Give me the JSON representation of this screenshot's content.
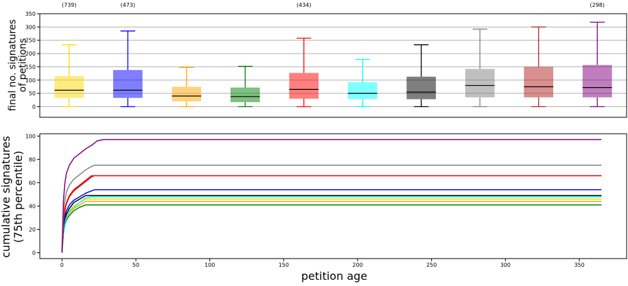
{
  "chart_data": [
    {
      "type": "box",
      "ylabel": "final no. signatures\nof petitions",
      "ylim": [
        -40,
        350
      ],
      "yticks": [
        0,
        50,
        100,
        150,
        200,
        250,
        300,
        350
      ],
      "ytick_labels": [
        "0",
        "50",
        "100",
        "150",
        "200",
        "250",
        "300",
        "350"
      ],
      "grid": "horizontal",
      "count_labels": [
        "(739)",
        "(473)",
        "(434)",
        "(298)"
      ],
      "count_label_positions": [
        1,
        2,
        5,
        10
      ],
      "boxes": [
        {
          "color": "#FFD700",
          "median_color": "#000000",
          "whisker_low": 0,
          "q1": 33,
          "median": 62,
          "q3": 115,
          "whisker_high": 233
        },
        {
          "color": "#0000FF",
          "median_color": "#000000",
          "whisker_low": 0,
          "q1": 33,
          "median": 62,
          "q3": 138,
          "whisker_high": 285
        },
        {
          "color": "#FFA500",
          "median_color": "#000000",
          "whisker_low": 0,
          "q1": 20,
          "median": 40,
          "q3": 75,
          "whisker_high": 148
        },
        {
          "color": "#008000",
          "median_color": "#000000",
          "whisker_low": 0,
          "q1": 17,
          "median": 38,
          "q3": 72,
          "whisker_high": 152
        },
        {
          "color": "#FF0000",
          "median_color": "#000000",
          "whisker_low": 0,
          "q1": 30,
          "median": 65,
          "q3": 127,
          "whisker_high": 258
        },
        {
          "color": "#00FFFF",
          "median_color": "#000000",
          "whisker_low": 0,
          "q1": 28,
          "median": 50,
          "q3": 92,
          "whisker_high": 178
        },
        {
          "color": "#000000",
          "median_color": "#000000",
          "whisker_low": 0,
          "q1": 28,
          "median": 55,
          "q3": 113,
          "whisker_high": 233
        },
        {
          "color": "#808080",
          "median_color": "#000000",
          "whisker_low": 0,
          "q1": 35,
          "median": 80,
          "q3": 142,
          "whisker_high": 292
        },
        {
          "color": "#B22222",
          "median_color": "#000000",
          "whisker_low": 0,
          "q1": 35,
          "median": 75,
          "q3": 150,
          "whisker_high": 300
        },
        {
          "color": "#800080",
          "median_color": "#000000",
          "whisker_low": 0,
          "q1": 35,
          "median": 72,
          "q3": 157,
          "whisker_high": 318
        }
      ]
    },
    {
      "type": "line",
      "xlabel": "petition age",
      "ylabel": "cumulative signatures\n(75th percentile)",
      "xlim": [
        -15,
        382
      ],
      "ylim": [
        -5,
        102
      ],
      "xticks": [
        0,
        50,
        100,
        150,
        200,
        250,
        300,
        350
      ],
      "xtick_labels": [
        "0",
        "50",
        "100",
        "150",
        "200",
        "250",
        "300",
        "350"
      ],
      "yticks": [
        0,
        20,
        40,
        60,
        80,
        100
      ],
      "ytick_labels": [
        "0",
        "20",
        "40",
        "60",
        "80",
        "100"
      ],
      "series": [
        {
          "color": "#008000",
          "x": [
            0,
            1,
            2,
            3,
            5,
            8,
            12,
            16,
            20,
            365
          ],
          "y": [
            0,
            17,
            24,
            28,
            32,
            36,
            39,
            41,
            41,
            41
          ]
        },
        {
          "color": "#FFA500",
          "x": [
            0,
            1,
            2,
            3,
            5,
            8,
            12,
            16,
            20,
            365
          ],
          "y": [
            0,
            19,
            26,
            30,
            34,
            38,
            41,
            44,
            44,
            44
          ]
        },
        {
          "color": "#FFD700",
          "x": [
            0,
            1,
            2,
            3,
            5,
            8,
            12,
            16,
            20,
            365
          ],
          "y": [
            0,
            20,
            27,
            31,
            36,
            40,
            43,
            46,
            46,
            46
          ]
        },
        {
          "color": "#00FFFF",
          "x": [
            0,
            1,
            2,
            3,
            5,
            8,
            12,
            16,
            20,
            365
          ],
          "y": [
            0,
            18,
            25,
            30,
            35,
            39,
            43,
            47,
            48,
            48
          ]
        },
        {
          "color": "#000000",
          "x": [
            0,
            1,
            2,
            3,
            5,
            8,
            12,
            16,
            20,
            365
          ],
          "y": [
            0,
            22,
            29,
            33,
            38,
            43,
            46,
            49,
            49,
            49
          ]
        },
        {
          "color": "#0000FF",
          "x": [
            0,
            1,
            2,
            3,
            5,
            8,
            12,
            16,
            20,
            22,
            365
          ],
          "y": [
            0,
            23,
            31,
            36,
            41,
            45,
            48,
            51,
            53,
            54,
            54
          ]
        },
        {
          "color": "#B22222",
          "x": [
            0,
            1,
            2,
            3,
            5,
            8,
            12,
            16,
            20,
            22,
            365
          ],
          "y": [
            0,
            26,
            36,
            42,
            48,
            53,
            57,
            61,
            65,
            66,
            66
          ]
        },
        {
          "color": "#FF0000",
          "x": [
            0,
            1,
            2,
            3,
            5,
            8,
            12,
            16,
            20,
            22,
            365
          ],
          "y": [
            0,
            27,
            37,
            43,
            49,
            54,
            58,
            62,
            66,
            66,
            66
          ]
        },
        {
          "color": "#808080",
          "x": [
            0,
            1,
            2,
            3,
            5,
            8,
            12,
            16,
            20,
            22,
            365
          ],
          "y": [
            0,
            33,
            45,
            52,
            58,
            63,
            67,
            71,
            74,
            75,
            75
          ]
        },
        {
          "color": "#800080",
          "x": [
            0,
            1,
            2,
            3,
            5,
            8,
            12,
            16,
            20,
            24,
            28,
            365
          ],
          "y": [
            0,
            45,
            60,
            68,
            75,
            81,
            85,
            89,
            92,
            96,
            97,
            97
          ]
        }
      ]
    }
  ]
}
